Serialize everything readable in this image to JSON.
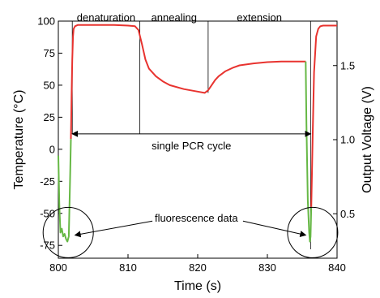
{
  "chart_data": {
    "type": "line",
    "title": "",
    "xlabel": "Time (s)",
    "ylabel_left": "Temperature (°C)",
    "ylabel_right": "Output Voltage (V)",
    "xlim": [
      800,
      840
    ],
    "ylim_left": [
      -85,
      100
    ],
    "ylim_right": [
      0.2,
      1.8
    ],
    "x_ticks": [
      800,
      810,
      820,
      830,
      840
    ],
    "y_ticks_left": [
      100,
      75,
      50,
      25,
      0,
      -25,
      -50,
      -75
    ],
    "y_ticks_right": [
      0.5,
      1.0,
      1.5
    ],
    "grid": false,
    "colors": {
      "temperature": "#e8332f",
      "voltage": "#66b845",
      "annotation": "#000000"
    },
    "series": [
      {
        "axis": "left",
        "color": "#e8332f",
        "x": [
          801.8,
          801.9,
          802.0,
          802.1,
          802.2,
          802.4,
          802.8,
          804,
          806,
          808,
          810,
          811,
          811.5,
          812,
          812.5,
          813,
          814,
          815,
          816,
          818,
          820,
          821,
          821.5,
          822,
          822.5,
          823,
          824,
          825,
          826,
          828,
          830,
          832,
          834,
          835.5
        ],
        "y": [
          8,
          40,
          70,
          88,
          94,
          96,
          97,
          97,
          97,
          97,
          96.5,
          96,
          93,
          82,
          70,
          63,
          57,
          53,
          50,
          47,
          45,
          44,
          46,
          50,
          54,
          57,
          61,
          63.5,
          65.5,
          67,
          68,
          68.5,
          68.5,
          68.5
        ]
      },
      {
        "axis": "left",
        "color": "#e8332f",
        "x": [
          836.3,
          836.5,
          836.7,
          837.0,
          837.3,
          837.6,
          838,
          839,
          840
        ],
        "y": [
          -45,
          10,
          60,
          88,
          94,
          96,
          96.5,
          96.5,
          96.5
        ]
      },
      {
        "axis": "left",
        "color": "#66b845",
        "x": [
          800.0,
          800.15,
          800.3,
          800.5,
          800.7,
          800.9,
          801.1,
          801.3,
          801.5,
          801.7,
          801.8
        ],
        "y": [
          -5,
          -45,
          -65,
          -62,
          -68,
          -66,
          -70,
          -72,
          -68,
          -20,
          8
        ]
      },
      {
        "axis": "left",
        "color": "#66b845",
        "x": [
          835.5,
          835.6,
          835.8,
          836.0,
          836.1,
          836.2,
          836.3
        ],
        "y": [
          68.5,
          20,
          -40,
          -65,
          -72,
          -68,
          -45
        ]
      }
    ],
    "phase_labels": [
      {
        "text": "denaturation",
        "x_start": 802.0,
        "x_end": 811.7
      },
      {
        "text": "annealing",
        "x_start": 811.7,
        "x_end": 821.5
      },
      {
        "text": "extension",
        "x_start": 821.5,
        "x_end": 836.2
      }
    ],
    "phase_dividers_x": [
      802.0,
      811.7,
      821.5,
      836.2
    ],
    "cycle_span": {
      "text": "single PCR cycle",
      "x_start": 802.0,
      "x_end": 836.2,
      "y": 12
    },
    "fluorescence_annotation": {
      "text": "fluorescence data",
      "circles": [
        {
          "x": 802.0,
          "y": -65
        },
        {
          "x": 836.5,
          "y": -65
        }
      ]
    }
  }
}
